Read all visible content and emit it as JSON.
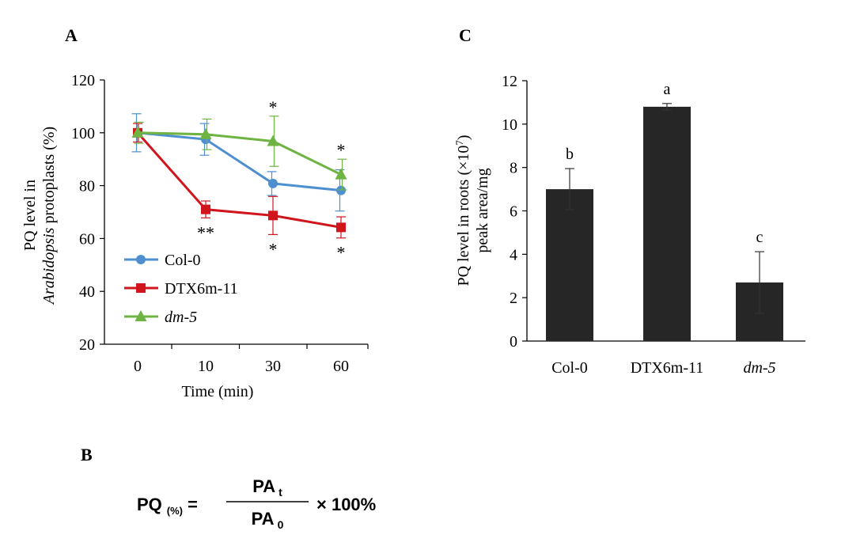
{
  "panels": {
    "a": "A",
    "b": "B",
    "c": "C"
  },
  "colors": {
    "col0": "#4E8FD0",
    "dtx": "#D0161C",
    "dm5": "#6FB443",
    "bar": "#262626",
    "axis": "#000000"
  },
  "formula": {
    "lhs_main": "PQ",
    "lhs_sub": "(%)",
    "equals": "=",
    "num_main": "PA",
    "num_sub": "t",
    "den_main": "PA",
    "den_sub": "0",
    "multiplier": "× 100%"
  },
  "chart_data": [
    {
      "type": "line",
      "panel": "A",
      "xlabel": "Time (min)",
      "ylabel_line1": "PQ level in",
      "ylabel_line2_italic": "Arabidopsis",
      "ylabel_line2_rest": " protoplasts (%)",
      "x": [
        "0",
        "10",
        "30",
        "60"
      ],
      "ylim": [
        20,
        120
      ],
      "yticks": [
        "20",
        "40",
        "60",
        "80",
        "100",
        "120"
      ],
      "legend_position": "bottom-left",
      "series": [
        {
          "name": "Col-0",
          "italic": false,
          "color": "#4E8FD0",
          "marker": "circle",
          "values": [
            100,
            97.5,
            80.8,
            78.2
          ],
          "errors": [
            7.2,
            6,
            4.5,
            7.8
          ],
          "annotations": [
            "",
            "",
            "",
            ""
          ]
        },
        {
          "name": "DTX6m-11",
          "italic": false,
          "color": "#D0161C",
          "marker": "square",
          "values": [
            100,
            71,
            68.7,
            64.2
          ],
          "errors": [
            3.5,
            3.2,
            7.2,
            4
          ],
          "annotations": [
            "",
            "**",
            "*",
            "*"
          ]
        },
        {
          "name": "dm-5",
          "italic": true,
          "color": "#6FB443",
          "marker": "triangle",
          "values": [
            100,
            99.4,
            96.8,
            84.2
          ],
          "errors": [
            4,
            5.8,
            9.5,
            5.8
          ],
          "annotations": [
            "",
            "",
            "*",
            "*"
          ]
        }
      ]
    },
    {
      "type": "bar",
      "panel": "C",
      "ylabel_line1": "PQ level in roots (×10",
      "ylabel_sup": "7",
      "ylabel_line1_end": ")",
      "ylabel_line2": "peak area/mg",
      "categories": [
        "Col-0",
        "DTX6m-11",
        "dm-5"
      ],
      "category_italic": [
        false,
        false,
        true
      ],
      "values": [
        7.0,
        10.8,
        2.7
      ],
      "errors": [
        0.95,
        0.15,
        1.42
      ],
      "letters": [
        "b",
        "a",
        "c"
      ],
      "ylim": [
        0,
        12
      ],
      "yticks": [
        "0",
        "2",
        "4",
        "6",
        "8",
        "10",
        "12"
      ]
    }
  ]
}
